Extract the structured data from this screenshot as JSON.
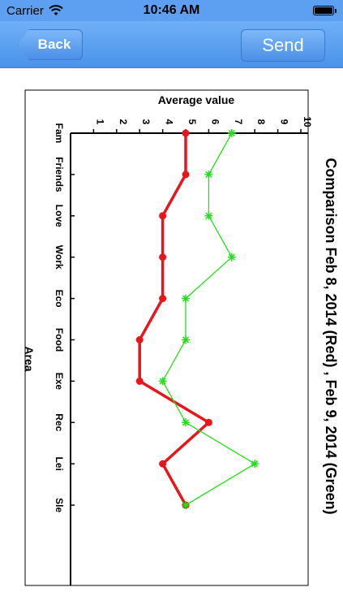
{
  "status_bar": {
    "carrier": "Carrier",
    "time": "10:46 AM"
  },
  "nav": {
    "back_label": "Back",
    "send_label": "Send"
  },
  "colors": {
    "nav_blue": "#5d9ff0",
    "series_red": "#e8161b",
    "series_green": "#22e01a"
  },
  "chart_data": {
    "type": "line",
    "orientation": "rotated 90 degrees clockwise",
    "title": "Comparison Feb 8, 2014 (Red) , Feb 9, 2014 (Green)",
    "xlabel": "Area",
    "ylabel": "Average value",
    "categories": [
      "Fam",
      "Friends",
      "Love",
      "Work",
      "Eco",
      "Food",
      "Exe",
      "Rec",
      "Lei",
      "Sle"
    ],
    "y_ticks": [
      1,
      2,
      3,
      4,
      5,
      6,
      7,
      8,
      9,
      10
    ],
    "ylim": [
      0,
      10.5
    ],
    "grid": false,
    "series": [
      {
        "values": [
          5,
          5,
          4,
          4,
          4,
          3,
          3,
          6,
          4,
          5
        ],
        "color": "#e8161b",
        "marker": "circle"
      },
      {
        "values": [
          7,
          6,
          6,
          7,
          5,
          5,
          4,
          5,
          8,
          5
        ],
        "color": "#22e01a",
        "marker": "star"
      }
    ]
  }
}
